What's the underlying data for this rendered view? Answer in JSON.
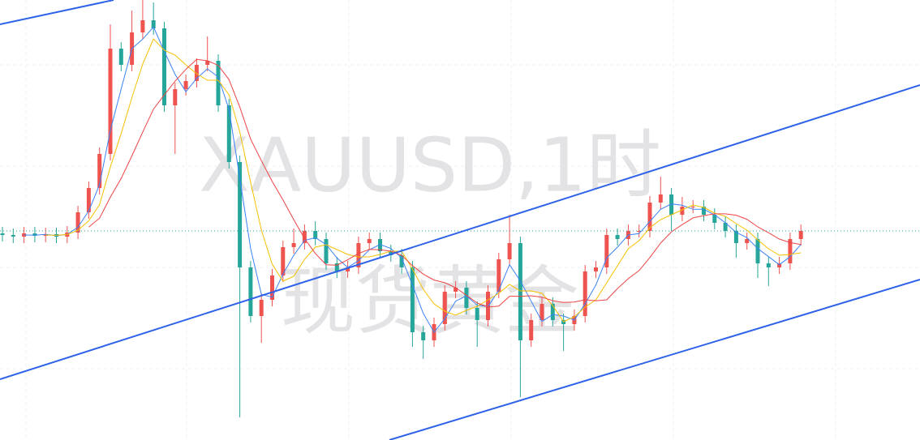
{
  "chart_data": {
    "type": "candlestick",
    "watermark": "XAUUSD,1时",
    "watermark_sub": "现货黄金",
    "ylim": [
      0,
      543
    ],
    "up_color": "#ef5350",
    "down_color": "#26a69a",
    "ma": [
      {
        "period": 3,
        "color": "#3b82f6"
      },
      {
        "period": 5,
        "color": "#f5c000"
      },
      {
        "period": 9,
        "color": "#ef4444"
      }
    ],
    "open": [
      255,
      253,
      251,
      255,
      252,
      254,
      251,
      256,
      281,
      311,
      353,
      483,
      463,
      503,
      518,
      508,
      413,
      433,
      443,
      463,
      468,
      413,
      343,
      213,
      153,
      173,
      203,
      238,
      243,
      258,
      248,
      218,
      208,
      213,
      243,
      248,
      233,
      228,
      213,
      133,
      123,
      143,
      183,
      188,
      163,
      148,
      183,
      223,
      243,
      123,
      148,
      168,
      148,
      143,
      153,
      208,
      213,
      253,
      248,
      258,
      258,
      293,
      303,
      278,
      288,
      288,
      278,
      268,
      258,
      243,
      248,
      218,
      213,
      218,
      248
    ],
    "high": [
      263,
      261,
      263,
      263,
      262,
      262,
      264,
      289,
      319,
      361,
      513,
      491,
      530,
      543,
      540,
      516,
      441,
      451,
      471,
      498,
      476,
      421,
      351,
      221,
      181,
      211,
      246,
      261,
      266,
      270,
      256,
      226,
      221,
      251,
      256,
      256,
      241,
      236,
      221,
      141,
      151,
      191,
      196,
      196,
      171,
      191,
      231,
      278,
      251,
      156,
      176,
      176,
      156,
      161,
      216,
      221,
      261,
      261,
      266,
      266,
      301,
      325,
      311,
      300,
      296,
      296,
      286,
      276,
      266,
      256,
      256,
      226,
      226,
      256,
      266
    ],
    "low": [
      245,
      243,
      243,
      244,
      244,
      243,
      243,
      248,
      273,
      303,
      345,
      455,
      455,
      495,
      500,
      405,
      353,
      425,
      435,
      455,
      405,
      335,
      28,
      145,
      120,
      165,
      195,
      230,
      235,
      240,
      210,
      200,
      200,
      205,
      235,
      225,
      220,
      205,
      115,
      100,
      115,
      135,
      175,
      155,
      115,
      140,
      175,
      215,
      53,
      115,
      140,
      140,
      110,
      135,
      145,
      200,
      205,
      240,
      240,
      250,
      250,
      285,
      258,
      270,
      280,
      270,
      260,
      250,
      225,
      235,
      200,
      190,
      205,
      210,
      240
    ],
    "close": [
      253,
      251,
      255,
      252,
      254,
      251,
      256,
      281,
      311,
      353,
      483,
      463,
      503,
      518,
      508,
      413,
      433,
      443,
      463,
      468,
      413,
      343,
      213,
      153,
      173,
      203,
      238,
      243,
      258,
      248,
      218,
      208,
      213,
      243,
      248,
      233,
      228,
      213,
      133,
      123,
      143,
      183,
      188,
      163,
      148,
      183,
      223,
      243,
      123,
      148,
      168,
      148,
      143,
      153,
      208,
      213,
      253,
      248,
      258,
      258,
      293,
      303,
      278,
      288,
      288,
      278,
      268,
      258,
      243,
      248,
      218,
      213,
      218,
      248,
      258
    ]
  }
}
